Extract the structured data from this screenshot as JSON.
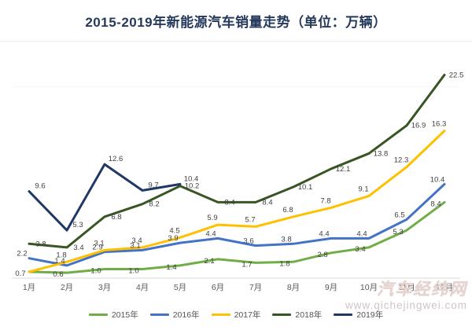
{
  "title": "2015-2019年新能源汽车销量走势（单位：万辆）",
  "watermark": {
    "logo": "汽车经纬网",
    "url": "www.qichejingwei.com"
  },
  "chart_data": {
    "type": "line",
    "title": "2015-2019年新能源汽车销量走势",
    "unit_label": "单位：万辆",
    "categories": [
      "1月",
      "2月",
      "3月",
      "4月",
      "5月",
      "6月",
      "7月",
      "8月",
      "9月",
      "10月",
      "11月",
      "12月"
    ],
    "series": [
      {
        "name": "2015年",
        "color": "#70AD47",
        "values": [
          0.7,
          0.6,
          1.0,
          1.0,
          1.4,
          2.1,
          1.7,
          1.8,
          2.8,
          3.4,
          5.3,
          8.4
        ]
      },
      {
        "name": "2016年",
        "color": "#4472C4",
        "values": [
          2.2,
          1.4,
          2.9,
          3.1,
          3.9,
          4.4,
          3.6,
          3.8,
          4.4,
          4.4,
          6.5,
          10.4
        ]
      },
      {
        "name": "2017年",
        "color": "#FFC000",
        "values": [
          0.7,
          1.8,
          3.1,
          3.4,
          4.5,
          5.9,
          5.7,
          6.8,
          7.8,
          9.1,
          12.3,
          16.3
        ],
        "hidden_label_indexes": [
          0
        ]
      },
      {
        "name": "2018年",
        "color": "#375623",
        "values": [
          3.8,
          3.4,
          6.8,
          8.2,
          10.2,
          8.4,
          8.4,
          10.1,
          12.1,
          13.8,
          16.9,
          22.5
        ]
      },
      {
        "name": "2019年",
        "color": "#1F3864",
        "values": [
          9.6,
          5.3,
          12.6,
          9.7,
          10.4
        ]
      }
    ],
    "xlabel": "",
    "ylabel": "",
    "ylim": [
      0,
      24
    ],
    "grid": false,
    "legend_position": "bottom",
    "data_labels": true
  }
}
